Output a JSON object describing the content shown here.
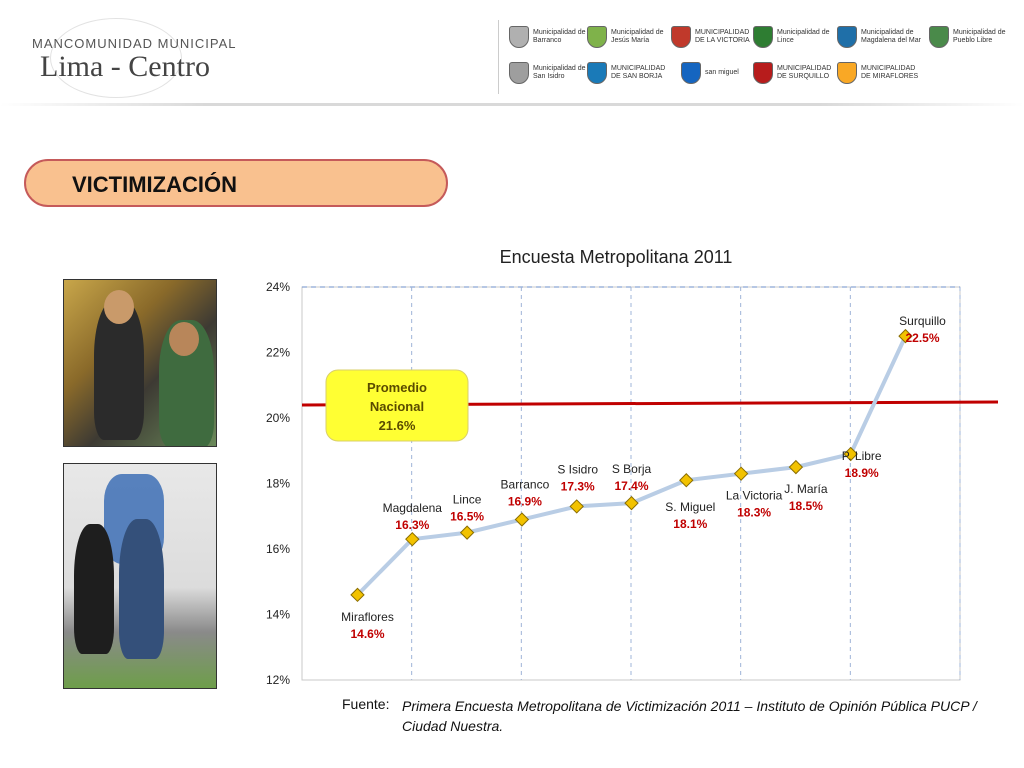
{
  "header": {
    "logo_line1": "MANCOMUNIDAD MUNICIPAL",
    "logo_line2": "Lima - Centro",
    "municipalities": [
      {
        "name": "Municipalidad de Barranco",
        "color": "#b0b0b0"
      },
      {
        "name": "Municipalidad de Jesús María",
        "color": "#7fb24a"
      },
      {
        "name": "MUNICIPALIDAD DE LA VICTORIA",
        "color": "#c0392b"
      },
      {
        "name": "Municipalidad de Lince",
        "color": "#2e7d32"
      },
      {
        "name": "Municipalidad de Magdalena del Mar",
        "color": "#1f6fa8"
      },
      {
        "name": "Municipalidad de Pueblo Libre",
        "color": "#4a8a4a"
      },
      {
        "name": "Municipalidad de San Isidro",
        "color": "#9e9e9e"
      },
      {
        "name": "MUNICIPALIDAD DE SAN BORJA",
        "color": "#1a7ab8"
      },
      {
        "name": "san miguel",
        "color": "#1565c0"
      },
      {
        "name": "MUNICIPALIDAD DE SURQUILLO",
        "color": "#b71c1c"
      },
      {
        "name": "MUNICIPALIDAD DE MIRAFLORES",
        "color": "#f9a825"
      }
    ]
  },
  "section_title": "VICTIMIZACIÓN",
  "source": {
    "label": "Fuente:",
    "text": "Primera Encuesta Metropolitana de Victimización 2011 – Instituto de Opinión Pública PUCP / Ciudad Nuestra."
  },
  "chart_data": {
    "type": "line",
    "title": "Encuesta Metropolitana 2011",
    "xlabel": "",
    "ylabel": "",
    "ylim": [
      12,
      24
    ],
    "yticks": [
      "12%",
      "14%",
      "16%",
      "18%",
      "20%",
      "22%",
      "24%"
    ],
    "grid": true,
    "points": [
      {
        "label": "Miraflores",
        "value": 14.6,
        "value_label": "14.6%"
      },
      {
        "label": "Magdalena",
        "value": 16.3,
        "value_label": "16.3%"
      },
      {
        "label": "Lince",
        "value": 16.5,
        "value_label": "16.5%"
      },
      {
        "label": "Barranco",
        "value": 16.9,
        "value_label": "16.9%"
      },
      {
        "label": "S Isidro",
        "value": 17.3,
        "value_label": "17.3%"
      },
      {
        "label": "S Borja",
        "value": 17.4,
        "value_label": "17.4%"
      },
      {
        "label": "S. Miguel",
        "value": 18.1,
        "value_label": "18.1%"
      },
      {
        "label": "La Victoria",
        "value": 18.3,
        "value_label": "18.3%"
      },
      {
        "label": "J. María",
        "value": 18.5,
        "value_label": "18.5%"
      },
      {
        "label": "P. Libre",
        "value": 18.9,
        "value_label": "18.9%"
      },
      {
        "label": "Surquillo",
        "value": 22.5,
        "value_label": "22.5%"
      }
    ],
    "reference": {
      "title_line1": "Promedio",
      "title_line2": "Nacional",
      "value_label": "21.6%"
    },
    "colors": {
      "line": "#b9cde5",
      "marker_fill": "#f2c200",
      "marker_stroke": "#8a6d00",
      "value_text": "#c00000",
      "reference_line": "#c00000",
      "reference_box": "#ffff33"
    }
  }
}
